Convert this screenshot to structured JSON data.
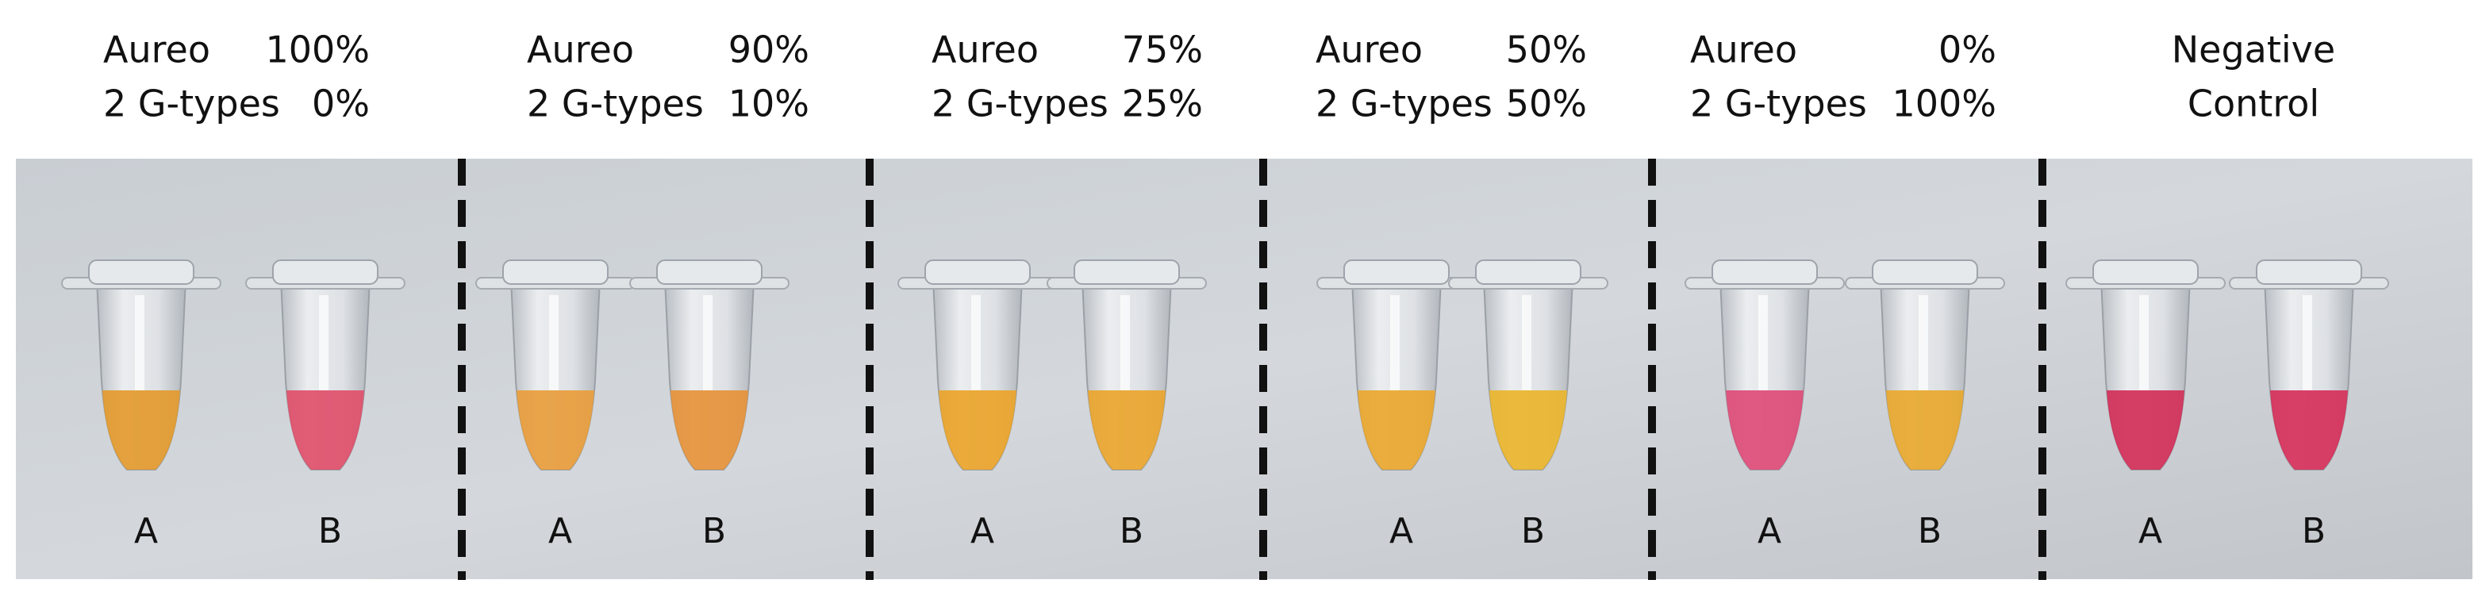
{
  "panels": [
    {
      "rows": [
        [
          "Aureo",
          "100%"
        ],
        [
          "2 G-types",
          "0%"
        ]
      ],
      "tubes": [
        "A",
        "B"
      ]
    },
    {
      "rows": [
        [
          "Aureo",
          "90%"
        ],
        [
          "2 G-types",
          "10%"
        ]
      ],
      "tubes": [
        "A",
        "B"
      ]
    },
    {
      "rows": [
        [
          "Aureo",
          "75%"
        ],
        [
          "2 G-types",
          "25%"
        ]
      ],
      "tubes": [
        "A",
        "B"
      ]
    },
    {
      "rows": [
        [
          "Aureo",
          "50%"
        ],
        [
          "2 G-types",
          "50%"
        ]
      ],
      "tubes": [
        "A",
        "B"
      ]
    },
    {
      "rows": [
        [
          "Aureo",
          "0%"
        ],
        [
          "2 G-types",
          "100%"
        ]
      ],
      "tubes": [
        "A",
        "B"
      ]
    },
    {
      "title": [
        "Negative",
        "Control"
      ],
      "tubes": [
        "A",
        "B"
      ]
    }
  ]
}
